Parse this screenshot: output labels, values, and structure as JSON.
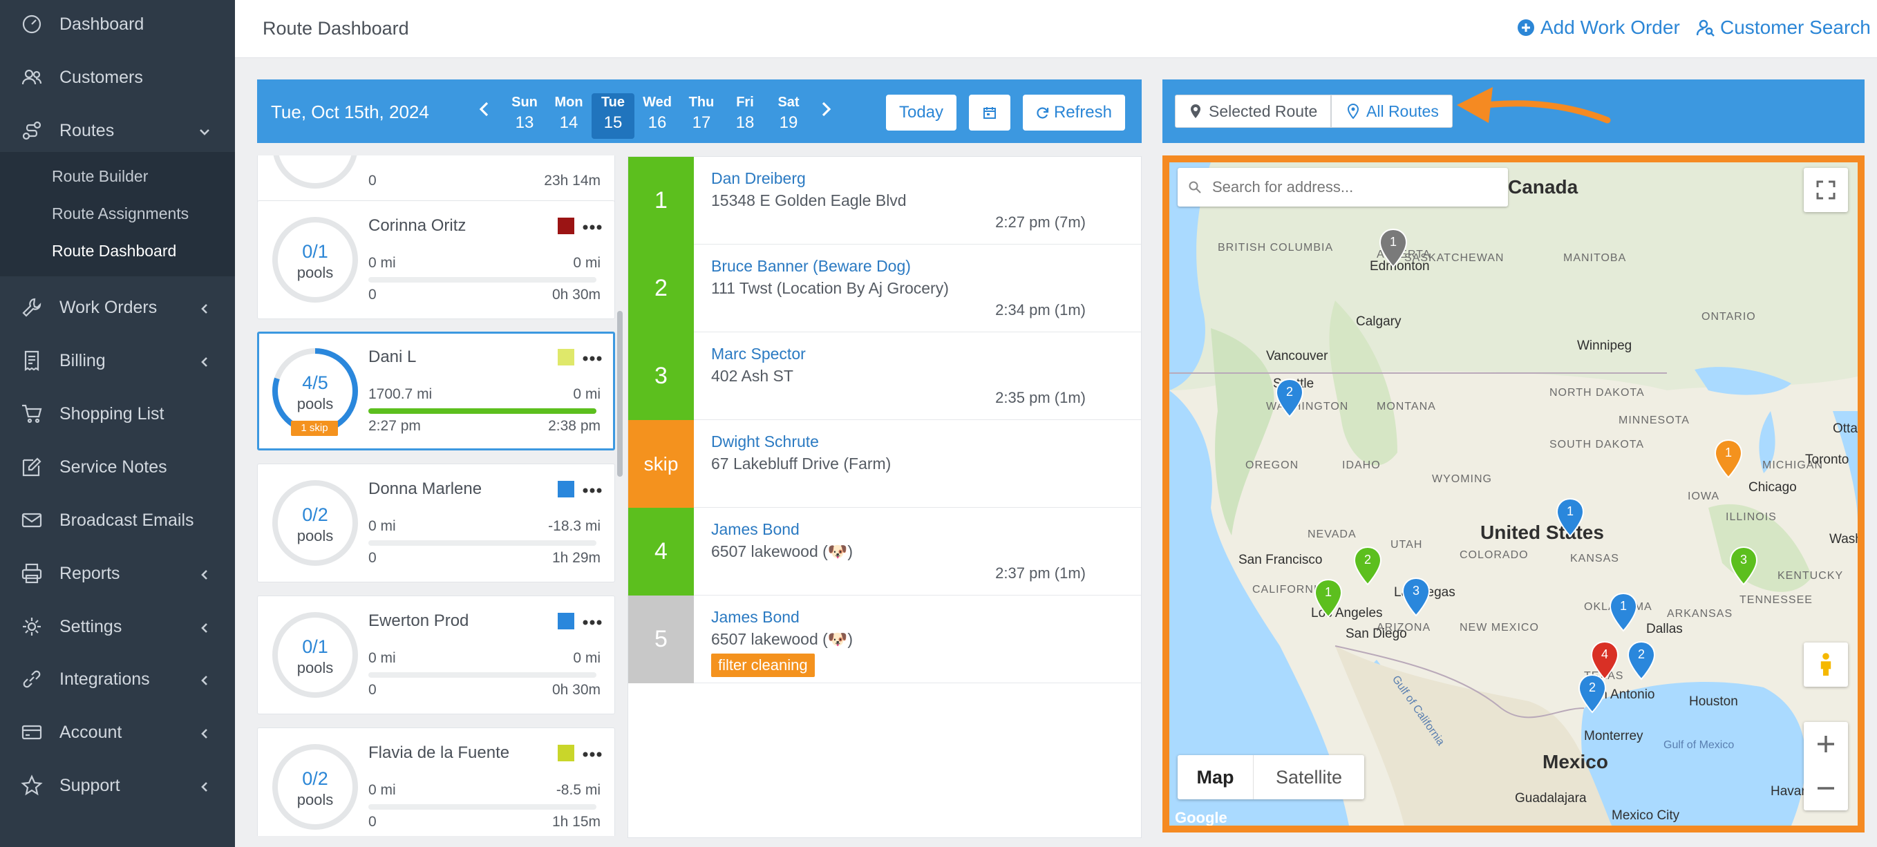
{
  "sidebar": {
    "items": [
      {
        "label": "Dashboard"
      },
      {
        "label": "Customers"
      },
      {
        "label": "Routes"
      },
      {
        "label": "Work Orders"
      },
      {
        "label": "Billing"
      },
      {
        "label": "Shopping List"
      },
      {
        "label": "Service Notes"
      },
      {
        "label": "Broadcast Emails"
      },
      {
        "label": "Reports"
      },
      {
        "label": "Settings"
      },
      {
        "label": "Integrations"
      },
      {
        "label": "Account"
      },
      {
        "label": "Support"
      }
    ],
    "routes_sub": [
      {
        "label": "Route Builder"
      },
      {
        "label": "Route Assignments"
      },
      {
        "label": "Route Dashboard"
      }
    ]
  },
  "header": {
    "title": "Route Dashboard",
    "add_work_order": "Add Work Order",
    "customer_search": "Customer Search"
  },
  "datebar": {
    "current_date": "Tue, Oct 15th, 2024",
    "days": [
      {
        "name": "Sun",
        "num": "13"
      },
      {
        "name": "Mon",
        "num": "14"
      },
      {
        "name": "Tue",
        "num": "15"
      },
      {
        "name": "Wed",
        "num": "16"
      },
      {
        "name": "Thu",
        "num": "17"
      },
      {
        "name": "Fri",
        "num": "18"
      },
      {
        "name": "Sat",
        "num": "19"
      }
    ],
    "today_label": "Today",
    "refresh_label": "Refresh"
  },
  "routes": [
    {
      "name": "",
      "pools_done": "",
      "pools_label": "",
      "r1_left": "0",
      "r1_right": "23h 14m",
      "r2_left": "",
      "r2_right": "",
      "progress": 0
    },
    {
      "name": "Corinna Oritz",
      "pools_done": "0/1",
      "pools_label": "pools",
      "color": "#9b1414",
      "r1_left": "0 mi",
      "r1_right": "0 mi",
      "r2_left": "0",
      "r2_right": "0h 30m",
      "progress": 0
    },
    {
      "name": "Dani L",
      "pools_done": "4/5",
      "pools_label": "pools",
      "color": "#dfe86a",
      "skip": "1 skip",
      "r1_left": "1700.7 mi",
      "r1_right": "0 mi",
      "r2_left": "2:27 pm",
      "r2_right": "2:38 pm",
      "progress": 1.0
    },
    {
      "name": "Donna Marlene",
      "pools_done": "0/2",
      "pools_label": "pools",
      "color": "#2a87dc",
      "r1_left": "0 mi",
      "r1_right": "-18.3 mi",
      "r2_left": "0",
      "r2_right": "1h 29m",
      "progress": 0
    },
    {
      "name": "Ewerton Prod",
      "pools_done": "0/1",
      "pools_label": "pools",
      "color": "#2a87dc",
      "r1_left": "0 mi",
      "r1_right": "0 mi",
      "r2_left": "0",
      "r2_right": "0h 30m",
      "progress": 0
    },
    {
      "name": "Flavia de la Fuente",
      "pools_done": "0/2",
      "pools_label": "pools",
      "color": "#c9d62a",
      "r1_left": "0 mi",
      "r1_right": "-8.5 mi",
      "r2_left": "0",
      "r2_right": "1h 15m",
      "progress": 0
    }
  ],
  "stops": [
    {
      "num": "1",
      "name": "Dan Dreiberg",
      "address": "15348 E Golden Eagle Blvd",
      "time": "2:27 pm (7m)",
      "color": "#5cbf1e"
    },
    {
      "num": "2",
      "name": "Bruce Banner (Beware Dog)",
      "address": "111 Twst (Location By Aj Grocery)",
      "time": "2:34 pm (1m)",
      "color": "#5cbf1e"
    },
    {
      "num": "3",
      "name": "Marc Spector",
      "address": "402 Ash ST",
      "time": "2:35 pm (1m)",
      "color": "#5cbf1e"
    },
    {
      "num": "skip",
      "name": "Dwight Schrute",
      "address": "67 Lakebluff Drive (Farm)",
      "time": "",
      "color": "#f4921e"
    },
    {
      "num": "4",
      "name": "James Bond",
      "address": "6507 lakewood (🐶)",
      "time": "2:37 pm (1m)",
      "color": "#5cbf1e"
    },
    {
      "num": "5",
      "name": "James Bond",
      "address": "6507 lakewood (🐶)",
      "time": "",
      "tag": "filter cleaning",
      "color": "#c8c8c8"
    }
  ],
  "map": {
    "selected_route": "Selected Route",
    "all_routes": "All Routes",
    "search_placeholder": "Search for address...",
    "map_btn": "Map",
    "satellite_btn": "Satellite",
    "labels": {
      "canada": "Canada",
      "united_states": "United States",
      "mexico": "Mexico",
      "british_columbia": "BRITISH COLUMBIA",
      "alberta": "ALBERTA",
      "saskatchewan": "SASKATCHEWAN",
      "manitoba": "MANITOBA",
      "ontario": "ONTARIO",
      "washington": "WASHINGTON",
      "montana": "MONTANA",
      "north_dakota": "NORTH DAKOTA",
      "minnesota": "MINNESOTA",
      "oregon": "OREGON",
      "idaho": "IDAHO",
      "south_dakota": "SOUTH DAKOTA",
      "wyoming": "WYOMING",
      "michigan": "MICHIGAN",
      "iowa": "IOWA",
      "nevada": "NEVADA",
      "utah": "UTAH",
      "colorado": "COLORADO",
      "kansas": "KANSAS",
      "illinois": "ILLINOIS",
      "tennessee": "TENNESSEE",
      "kentucky": "KENTUCKY",
      "california": "CALIFORNIA",
      "arizona": "ARIZONA",
      "new_mexico": "NEW MEXICO",
      "oklahoma": "OKLAHOMA",
      "arkansas": "ARKANSAS",
      "texas": "TEXAS",
      "edmonton": "Edmonton",
      "calgary": "Calgary",
      "vancouver": "Vancouver",
      "seattle": "Seattle",
      "winnipeg": "Winnipeg",
      "ottawa": "Ottawa",
      "toronto": "Toronto",
      "chicago": "Chicago",
      "washington_dc": "Washington",
      "san_francisco": "San Francisco",
      "las_vegas": "Las Vegas",
      "los_angeles": "Los Angeles",
      "san_diego": "San Diego",
      "dallas": "Dallas",
      "houston": "Houston",
      "san_antonio": "San Antonio",
      "monterrey": "Monterrey",
      "guadalajara": "Guadalajara",
      "mexico_city": "Mexico City",
      "havana": "Havana",
      "gulf_of_mexico": "Gulf of Mexico",
      "gulf_of_california": "Gulf of California",
      "google": "Google"
    },
    "markers": [
      {
        "n": "1",
        "color": "#7a7a7a"
      },
      {
        "n": "2",
        "color": "#2a87dc"
      },
      {
        "n": "1",
        "color": "#f4921e"
      },
      {
        "n": "1",
        "color": "#2a87dc"
      },
      {
        "n": "2",
        "color": "#5cbf1e"
      },
      {
        "n": "3",
        "color": "#5cbf1e"
      },
      {
        "n": "1",
        "color": "#5cbf1e"
      },
      {
        "n": "3",
        "color": "#2a87dc"
      },
      {
        "n": "1",
        "color": "#2a87dc"
      },
      {
        "n": "4",
        "color": "#d93025"
      },
      {
        "n": "2",
        "color": "#2a87dc"
      },
      {
        "n": "2",
        "color": "#2a87dc"
      }
    ]
  }
}
